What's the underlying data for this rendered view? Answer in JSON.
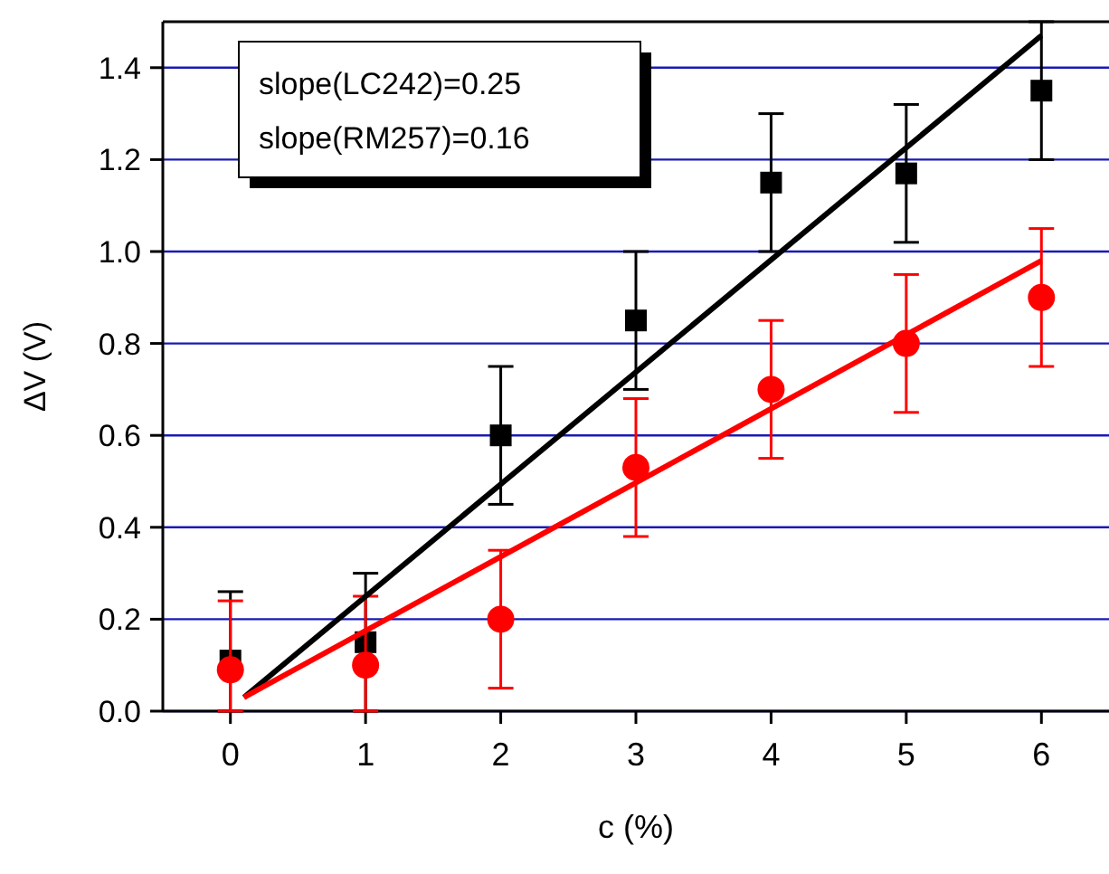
{
  "chart_data": {
    "type": "scatter",
    "xlabel": "c  (%)",
    "ylabel": "ΔV  (V)",
    "xlim": [
      -0.5,
      6.5
    ],
    "ylim": [
      0,
      1.5
    ],
    "xticks": [
      0,
      1,
      2,
      3,
      4,
      5,
      6
    ],
    "yticks": [
      {
        "value": 0,
        "label": "0.0"
      },
      0.2,
      0.4,
      0.6,
      0.8,
      {
        "value": 1,
        "label": "1.0"
      },
      1.2,
      1.4
    ],
    "grid": "y",
    "annotations": [
      "slope(LC242)=0.25",
      "slope(RM257)=0.16"
    ],
    "series": [
      {
        "marker": "square",
        "color": "#000000",
        "x": [
          0,
          1,
          2,
          3,
          4,
          5,
          6
        ],
        "values": [
          0.11,
          0.15,
          0.6,
          0.85,
          1.15,
          1.17,
          1.35
        ],
        "errors": [
          [
            0,
            0.26
          ],
          [
            0,
            0.3
          ],
          [
            0.45,
            0.75
          ],
          [
            0.7,
            1.0
          ],
          [
            1.0,
            1.3
          ],
          [
            1.02,
            1.32
          ],
          [
            1.2,
            1.5
          ]
        ]
      },
      {
        "marker": "circle",
        "color": "#ff0000",
        "x": [
          0,
          1,
          2,
          3,
          4,
          5,
          6
        ],
        "values": [
          0.09,
          0.1,
          0.2,
          0.53,
          0.7,
          0.8,
          0.9
        ],
        "errors": [
          [
            0,
            0.24
          ],
          [
            0,
            0.25
          ],
          [
            0.05,
            0.35
          ],
          [
            0.38,
            0.68
          ],
          [
            0.55,
            0.85
          ],
          [
            0.65,
            0.95
          ],
          [
            0.75,
            1.05
          ]
        ]
      },
      {
        "type": "line",
        "marker": "none",
        "color": "#000000",
        "x": [
          0.1,
          6
        ],
        "values": [
          0.03,
          1.47
        ]
      },
      {
        "type": "line",
        "marker": "none",
        "color": "#ff0000",
        "x": [
          0.1,
          6
        ],
        "values": [
          0.03,
          0.98
        ]
      }
    ]
  }
}
